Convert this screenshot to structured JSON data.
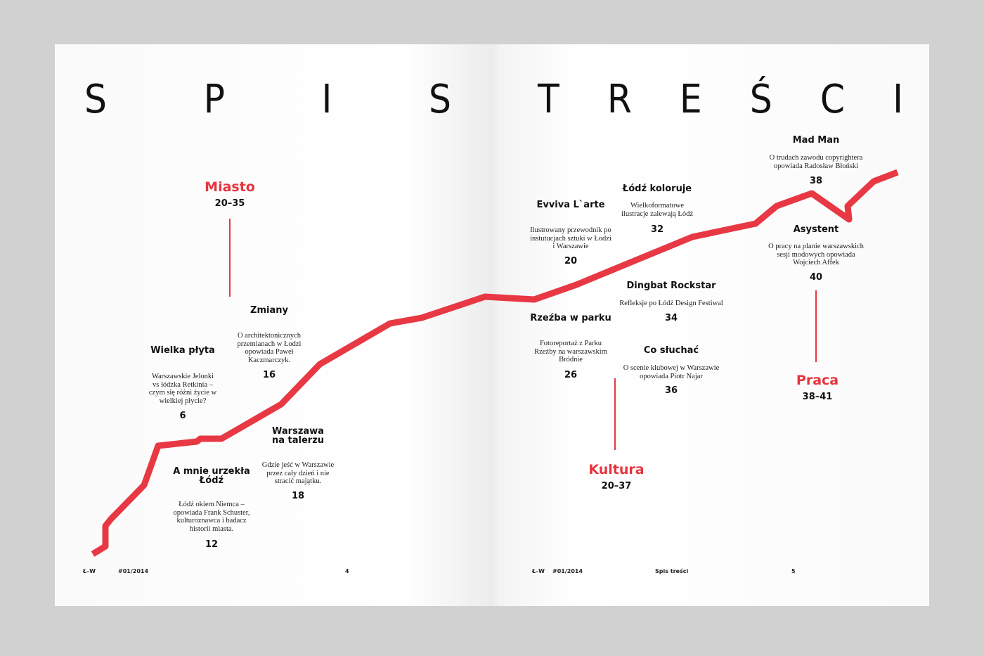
{
  "header": {
    "title_words": [
      "SPIS",
      "TREŚCI"
    ]
  },
  "sections": [
    {
      "name": "Miasto",
      "pages": "20–35"
    },
    {
      "name": "Kultura",
      "pages": "20–37"
    },
    {
      "name": "Praca",
      "pages": "38–41"
    }
  ],
  "articles": [
    {
      "title": "Zmiany",
      "description": "O architektonicznych przemianach w Łodzi opowiada Paweł Kaczmarczyk.",
      "page": "16"
    },
    {
      "title": "Wielka płyta",
      "description": "Warszawskie Jelonki vs łódzka Retkinia – czym się różni życie w wielkiej płycie?",
      "page": "6"
    },
    {
      "title": "Warszawa na talerzu",
      "description": "Gdzie jeść w Warszawie przez cały dzień i nie stracić majątku.",
      "page": "18"
    },
    {
      "title": "A mnie urzekła Łódź",
      "description": "Łódź okiem Niemca – opowiada Frank Schuster, kulturoznawca i badacz historii miasta.",
      "page": "12"
    },
    {
      "title": "Evviva L`arte",
      "description": "Ilustrowany przewodnik po instutucjach sztuki w Łodzi i Warszawie",
      "page": "20"
    },
    {
      "title": "Łódź koloruje",
      "description": "Wielkoformatowe ilustracje zalewają Łódź",
      "page": "32"
    },
    {
      "title": "Dingbat Rockstar",
      "description": "Refleksje po Łódź Design Festiwal",
      "page": "34"
    },
    {
      "title": "Rzeźba w parku",
      "description": "Fotoreportaż z Parku Rzeźby na warszawskim Bródnie",
      "page": "26"
    },
    {
      "title": "Co słuchać",
      "description": "O scenie klubowej w Warszawie opowiada Piotr Najar",
      "page": "36"
    },
    {
      "title": "Mad Man",
      "description": "O trudach zawodu copyrightera opowiada Radosław Błoński",
      "page": "38"
    },
    {
      "title": "Asystent",
      "description": "O pracy na planie warszawskich sesji modowych opowiada Wojciech Affek",
      "page": "40"
    }
  ],
  "footer": {
    "left": {
      "logo": "Ł–W",
      "issue": "#01/2014",
      "page": "4"
    },
    "right": {
      "logo": "Ł–W",
      "issue": "#01/2014",
      "section": "Spis treści",
      "page": "5"
    }
  }
}
